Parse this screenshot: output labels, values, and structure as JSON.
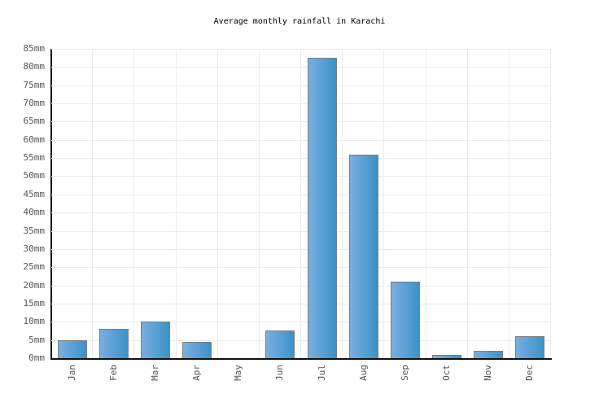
{
  "chart_data": {
    "type": "bar",
    "title": "Average monthly rainfall in Karachi",
    "categories": [
      "Jan",
      "Feb",
      "Mar",
      "Apr",
      "May",
      "Jun",
      "Jul",
      "Aug",
      "Sep",
      "Oct",
      "Nov",
      "Dec"
    ],
    "values": [
      5,
      8,
      10,
      4.5,
      0,
      7.5,
      82.5,
      56,
      21,
      0.8,
      2,
      6
    ],
    "unit": "mm",
    "xlabel": "",
    "ylabel": "",
    "ylim": [
      0,
      85
    ],
    "y_tick_step": 5,
    "y_tick_labels": [
      "0mm",
      "5mm",
      "10mm",
      "15mm",
      "20mm",
      "25mm",
      "30mm",
      "35mm",
      "40mm",
      "45mm",
      "50mm",
      "55mm",
      "60mm",
      "65mm",
      "70mm",
      "75mm",
      "80mm",
      "85mm"
    ],
    "grid": true,
    "legend": false,
    "bar_gradient": [
      "#79afe1",
      "#3b92c8"
    ],
    "bar_border_color": "#7d7d7d",
    "axis_color": "#111111",
    "grid_color": "#ececec",
    "tick_label_color": "#555555",
    "title_color": "#000000",
    "background_color": "#ffffff"
  }
}
